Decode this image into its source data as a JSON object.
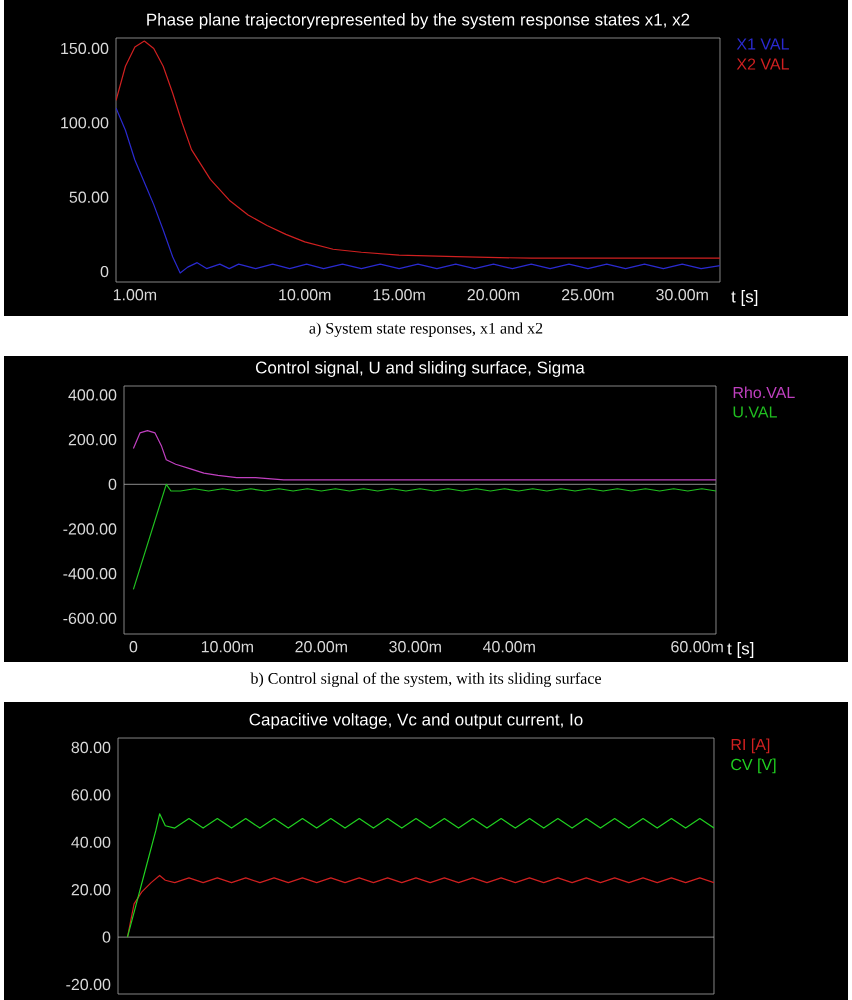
{
  "chart_data": [
    {
      "type": "line",
      "title": "Phase plane trajectoryrepresented by the system response states x1, x2",
      "xlabel": "t [s]",
      "xlim": [
        0,
        32
      ],
      "ylim": [
        -7,
        157
      ],
      "xticks": [
        {
          "value": 1,
          "label": "1.00m"
        },
        {
          "value": 10,
          "label": "10.00m"
        },
        {
          "value": 15,
          "label": "15.00m"
        },
        {
          "value": 20,
          "label": "20.00m"
        },
        {
          "value": 25,
          "label": "25.00m"
        },
        {
          "value": 30,
          "label": "30.00m"
        }
      ],
      "yticks": [
        0,
        {
          "value": 50,
          "label": "50.00"
        },
        {
          "value": 100,
          "label": "100.00"
        },
        {
          "value": 150,
          "label": "150.00"
        }
      ],
      "annotations": [
        "a) System state responses, x1 and x2"
      ],
      "series": [
        {
          "name": "X1 VAL",
          "color": "#2a2ad0",
          "x": [
            0,
            0.5,
            1,
            1.6,
            2,
            2.5,
            3,
            3.4,
            3.8,
            4.3,
            4.8,
            5.5,
            6,
            6.5,
            7.4,
            8.3,
            9.2,
            10.1,
            11,
            12,
            13,
            14,
            15,
            16,
            17,
            18,
            19,
            20,
            21,
            22,
            23,
            24,
            25,
            26,
            27,
            28,
            29,
            30,
            31,
            32
          ],
          "values": [
            110,
            95,
            75,
            57,
            45,
            28,
            10,
            -1,
            3,
            6,
            2,
            5,
            2,
            5,
            2,
            5,
            2,
            5,
            2,
            5,
            2,
            5,
            2,
            5,
            2,
            5,
            2,
            5,
            2,
            5,
            2,
            5,
            2,
            5,
            2,
            5,
            2,
            5,
            2,
            4
          ]
        },
        {
          "name": "X2 VAL",
          "color": "#d02020",
          "x": [
            0,
            0.5,
            1,
            1.5,
            2,
            2.5,
            3,
            3.5,
            4,
            5,
            6,
            7,
            8,
            9,
            10,
            11.5,
            13,
            15,
            18,
            22,
            26,
            32
          ],
          "values": [
            115,
            138,
            151,
            155,
            150,
            138,
            120,
            100,
            82,
            62,
            48,
            38,
            31,
            25,
            20,
            15,
            13,
            11,
            10,
            9,
            9,
            9
          ]
        }
      ]
    },
    {
      "type": "line",
      "title": "Control signal, U and sliding surface, Sigma",
      "xlabel": "t [s]",
      "xlim": [
        -1,
        62
      ],
      "ylim": [
        -670,
        440
      ],
      "xticks": [
        0,
        {
          "value": 10,
          "label": "10.00m"
        },
        {
          "value": 20,
          "label": "20.00m"
        },
        {
          "value": 30,
          "label": "30.00m"
        },
        {
          "value": 40,
          "label": "40.00m"
        },
        {
          "value": 60,
          "label": "60.00m"
        }
      ],
      "yticks": [
        {
          "value": -600,
          "label": "-600.00"
        },
        {
          "value": -400,
          "label": "-400.00"
        },
        {
          "value": -200,
          "label": "-200.00"
        },
        0,
        {
          "value": 200,
          "label": "200.00"
        },
        {
          "value": 400,
          "label": "400.00"
        }
      ],
      "ref_lines": [
        {
          "axis": "y",
          "value": 0,
          "color": "#b0b0b0"
        }
      ],
      "annotations": [
        "b) Control signal of the system, with its sliding surface"
      ],
      "series": [
        {
          "name": "Rho.VAL",
          "color": "#c040c0",
          "x": [
            0,
            0.7,
            1.5,
            2.3,
            3,
            3.5,
            4.5,
            6,
            7.5,
            9,
            11,
            13,
            16,
            20,
            30,
            40,
            50,
            62
          ],
          "values": [
            160,
            230,
            240,
            230,
            170,
            110,
            90,
            70,
            50,
            40,
            30,
            30,
            20,
            20,
            20,
            20,
            20,
            20
          ]
        },
        {
          "name": "U.VAL",
          "color": "#20c020",
          "x": [
            0,
            3.5,
            4,
            5,
            6.5,
            8,
            9.5,
            11,
            12.5,
            14,
            15.5,
            17,
            18.5,
            20,
            21.5,
            23,
            24.5,
            26,
            27.5,
            29,
            30.5,
            32,
            33.5,
            35,
            36.5,
            38,
            39.5,
            41,
            42.5,
            44,
            45.5,
            47,
            48.5,
            50,
            51.5,
            53,
            54.5,
            56,
            57.5,
            59,
            60.5,
            62
          ],
          "values": [
            -470,
            0,
            -30,
            -30,
            -20,
            -30,
            -20,
            -30,
            -20,
            -30,
            -20,
            -30,
            -20,
            -30,
            -20,
            -30,
            -20,
            -30,
            -20,
            -30,
            -20,
            -30,
            -20,
            -30,
            -20,
            -30,
            -20,
            -30,
            -20,
            -30,
            -20,
            -30,
            -20,
            -30,
            -20,
            -30,
            -20,
            -30,
            -20,
            -30,
            -20,
            -30
          ]
        }
      ]
    },
    {
      "type": "line",
      "title": "Capacitive voltage, Vc and output current, Io",
      "xlim": [
        -1,
        62
      ],
      "ylim": [
        -24,
        84
      ],
      "tick_labels": "y",
      "yticks": [
        {
          "value": -20,
          "label": "-20.00"
        },
        0,
        {
          "value": 20,
          "label": "20.00"
        },
        {
          "value": 40,
          "label": "40.00"
        },
        {
          "value": 60,
          "label": "60.00"
        },
        {
          "value": 80,
          "label": "80.00"
        }
      ],
      "ref_lines": [
        {
          "axis": "y",
          "value": 0,
          "color": "#b0b0b0"
        }
      ],
      "series": [
        {
          "name": "RI [A]",
          "color": "#d02020",
          "x": [
            0,
            0.7,
            1.5,
            2.5,
            3.4,
            4,
            5,
            6.5,
            8,
            9.5,
            11,
            12.5,
            14,
            15.5,
            17,
            18.5,
            20,
            21.5,
            23,
            24.5,
            26,
            27.5,
            29,
            30.5,
            32,
            33.5,
            35,
            36.5,
            38,
            39.5,
            41,
            42.5,
            44,
            45.5,
            47,
            48.5,
            50,
            51.5,
            53,
            54.5,
            56,
            57.5,
            59,
            60.5,
            62
          ],
          "values": [
            0,
            14,
            19,
            23,
            26,
            24,
            23,
            25,
            23,
            25,
            23,
            25,
            23,
            25,
            23,
            25,
            23,
            25,
            23,
            25,
            23,
            25,
            23,
            25,
            23,
            25,
            23,
            25,
            23,
            25,
            23,
            25,
            23,
            25,
            23,
            25,
            23,
            25,
            23,
            25,
            23,
            25,
            23,
            25,
            23
          ]
        },
        {
          "name": "CV [V]",
          "color": "#20d020",
          "x": [
            0,
            1,
            2,
            3,
            3.4,
            4,
            5,
            6.5,
            8,
            9.5,
            11,
            12.5,
            14,
            15.5,
            17,
            18.5,
            20,
            21.5,
            23,
            24.5,
            26,
            27.5,
            29,
            30.5,
            32,
            33.5,
            35,
            36.5,
            38,
            39.5,
            41,
            42.5,
            44,
            45.5,
            47,
            48.5,
            50,
            51.5,
            53,
            54.5,
            56,
            57.5,
            59,
            60.5,
            62
          ],
          "values": [
            0,
            15,
            30,
            45,
            52,
            47,
            46,
            50,
            46,
            50,
            46,
            50,
            46,
            50,
            46,
            50,
            46,
            50,
            46,
            50,
            46,
            50,
            46,
            50,
            46,
            50,
            46,
            50,
            46,
            50,
            46,
            50,
            46,
            50,
            46,
            50,
            46,
            50,
            46,
            50,
            46,
            50,
            46,
            50,
            46
          ]
        }
      ]
    }
  ]
}
